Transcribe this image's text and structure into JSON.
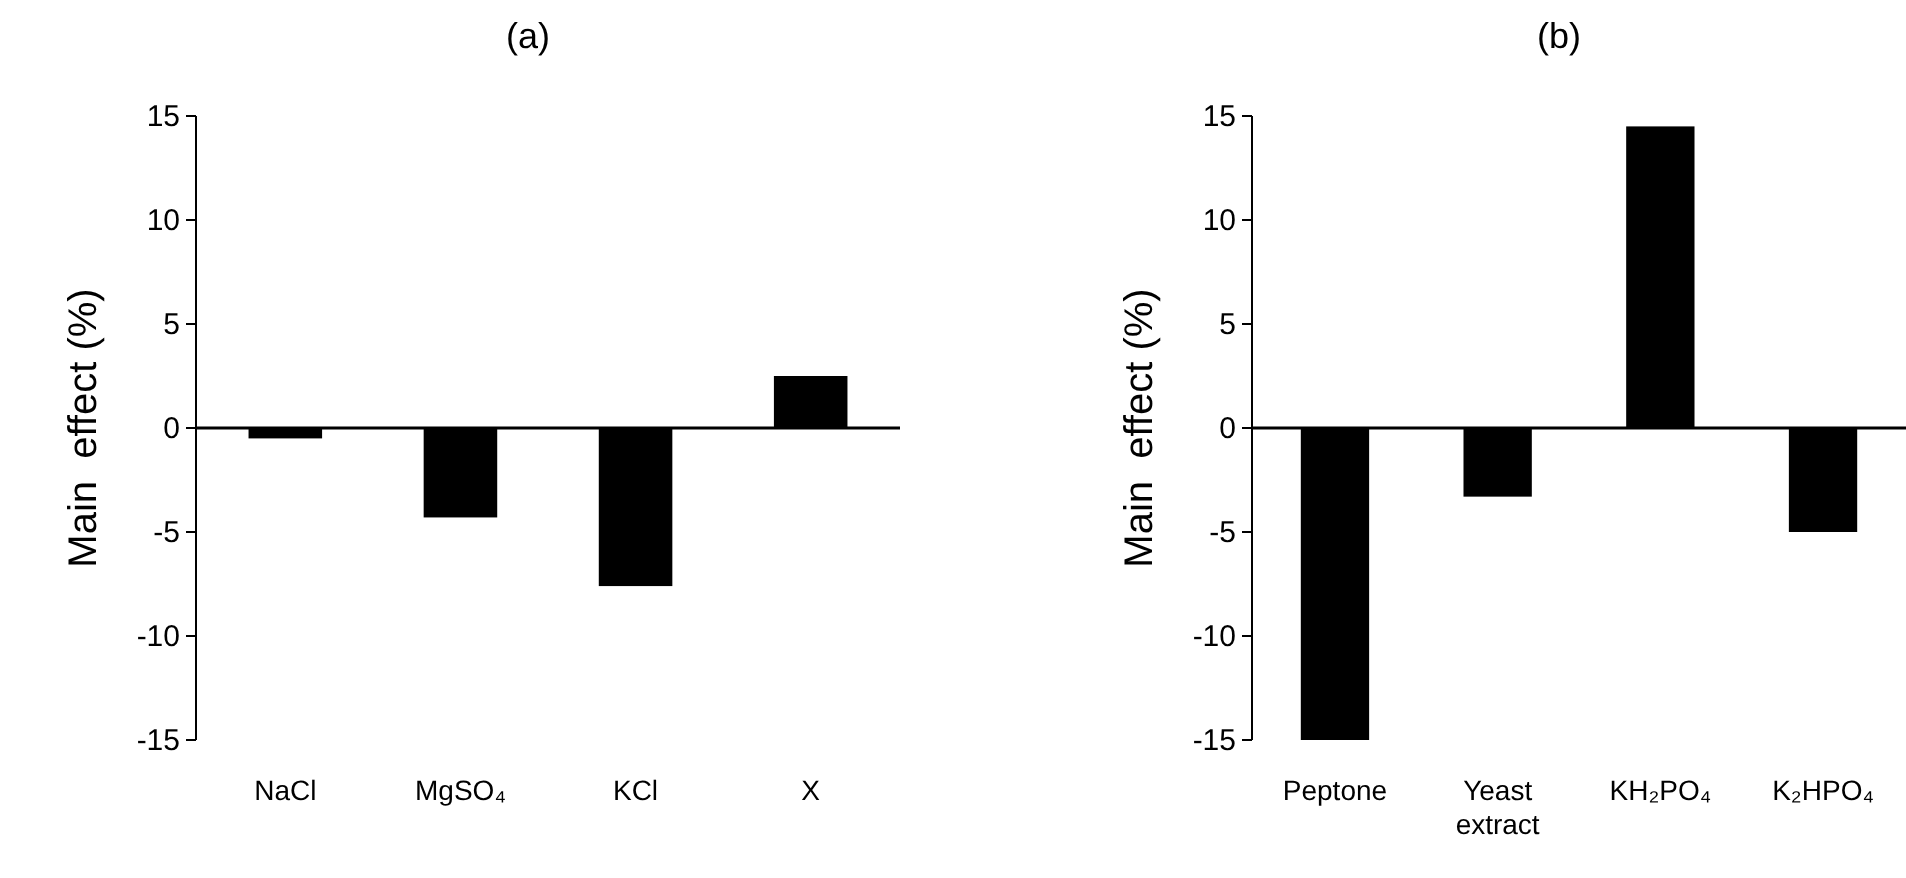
{
  "chart_data": [
    {
      "type": "bar",
      "title": "(a)",
      "ylabel": "Main  effect (%)",
      "categories": [
        "NaCl",
        "MgSO₄",
        "KCl",
        "X"
      ],
      "values": [
        -0.5,
        -4.3,
        -7.6,
        2.5
      ],
      "color": "#000000",
      "ylim": [
        -15,
        15
      ],
      "yticks": [
        -15,
        -10,
        -5,
        0,
        5,
        10,
        15
      ]
    },
    {
      "type": "bar",
      "title": "(b)",
      "ylabel": "Main  effect (%)",
      "categories": [
        "Peptone",
        "Yeast extract",
        "KH₂PO₄",
        "K₂HPO₄"
      ],
      "values": [
        -15.0,
        -3.3,
        14.5,
        -5.0
      ],
      "color": "#000000",
      "ylim": [
        -15,
        15
      ],
      "yticks": [
        -15,
        -10,
        -5,
        0,
        5,
        10,
        15
      ]
    }
  ]
}
